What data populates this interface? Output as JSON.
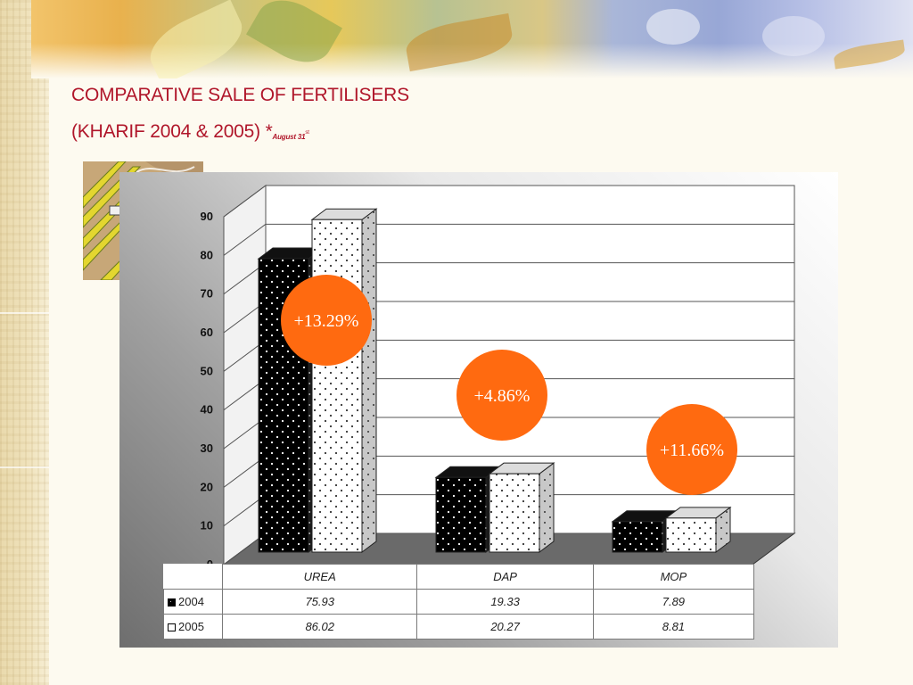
{
  "slide": {
    "title_line1": "COMPARATIVE SALE OF FERTILISERS",
    "title_line2": "(KHARIF 2004 & 2005) *",
    "title_note": "August 31",
    "title_note_sup": "st"
  },
  "colors": {
    "title": "#b0162a",
    "badge": "#ff6a10",
    "series_2004": "#000000",
    "series_2005": "#ffffff"
  },
  "clipart": {
    "icon": "farm-harvester-tractor-icon"
  },
  "chart_data": {
    "type": "bar",
    "style": "3d-clustered",
    "categories": [
      "UREA",
      "DAP",
      "MOP"
    ],
    "series": [
      {
        "name": "2004",
        "values": [
          75.93,
          19.33,
          7.89
        ]
      },
      {
        "name": "2005",
        "values": [
          86.02,
          20.27,
          8.81
        ]
      }
    ],
    "ylim": [
      0,
      90
    ],
    "yticks": [
      "0",
      "10",
      "20",
      "30",
      "40",
      "50",
      "60",
      "70",
      "80",
      "90"
    ],
    "grid": true,
    "legend": "data-table-below",
    "table": {
      "rows": [
        {
          "label": "2004",
          "cells": [
            "75.93",
            "19.33",
            "7.89"
          ]
        },
        {
          "label": "2005",
          "cells": [
            "86.02",
            "20.27",
            "8.81"
          ]
        }
      ]
    },
    "annotations": [
      {
        "category": "UREA",
        "text": "+13.29%"
      },
      {
        "category": "DAP",
        "text": "+4.86%"
      },
      {
        "category": "MOP",
        "text": "+11.66%"
      }
    ]
  }
}
